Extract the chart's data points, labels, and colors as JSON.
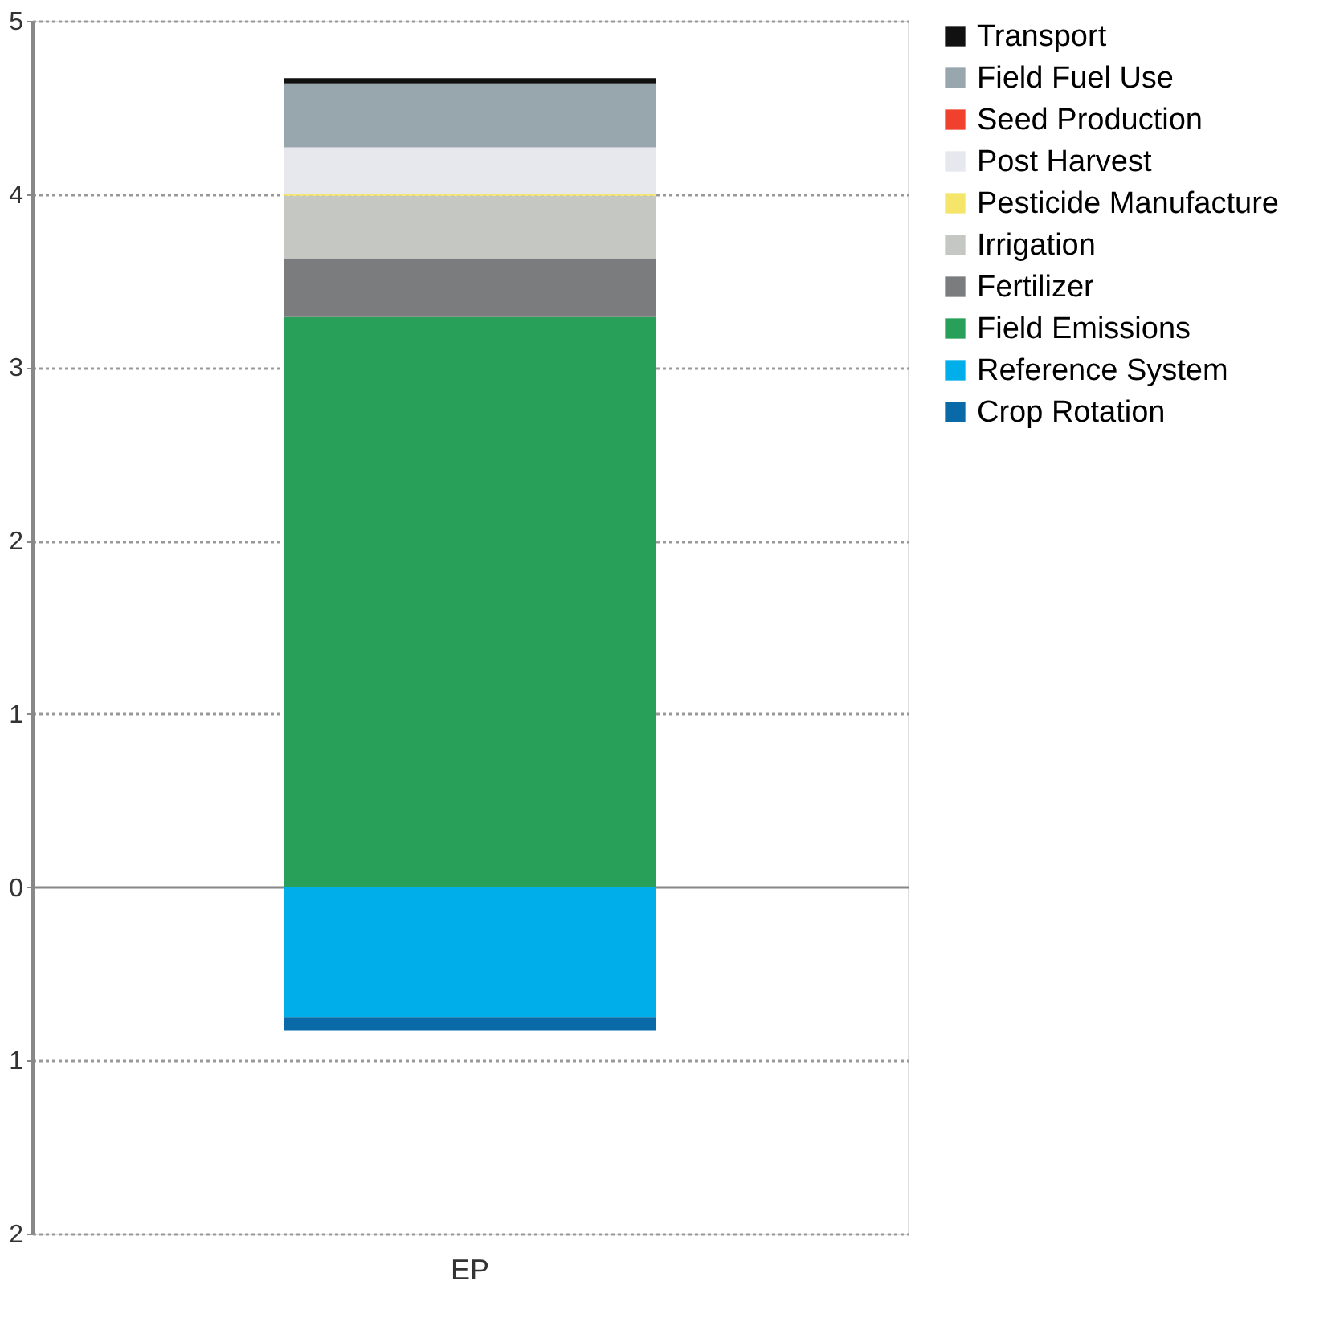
{
  "chart_data": {
    "type": "bar",
    "stacked": true,
    "categories": [
      "EP"
    ],
    "series": [
      {
        "name": "Field Emissions",
        "color": "#28a05a",
        "values": [
          3.29
        ]
      },
      {
        "name": "Fertilizer",
        "color": "#7a7c7e",
        "values": [
          0.34
        ]
      },
      {
        "name": "Irrigation",
        "color": "#c4c7c2",
        "values": [
          0.36
        ]
      },
      {
        "name": "Pesticide Manufacture",
        "color": "#f5e56b",
        "values": [
          0.01
        ]
      },
      {
        "name": "Post Harvest",
        "color": "#e6e8ee",
        "values": [
          0.27
        ]
      },
      {
        "name": "Seed Production",
        "color": "#f0412e",
        "values": [
          0
        ]
      },
      {
        "name": "Field Fuel Use",
        "color": "#98a6ae",
        "values": [
          0.37
        ]
      },
      {
        "name": "Transport",
        "color": "#111111",
        "values": [
          0.03
        ]
      },
      {
        "name": "Reference System",
        "color": "#00aeea",
        "values": [
          -0.75
        ]
      },
      {
        "name": "Crop Rotation",
        "color": "#0a6aa8",
        "values": [
          -0.08
        ]
      }
    ],
    "ylim": [
      -2,
      5
    ],
    "yticks": [
      {
        "value": -2,
        "label": "2"
      },
      {
        "value": -1,
        "label": "1"
      },
      0,
      1,
      2,
      3,
      4,
      5
    ],
    "grid": "y",
    "legend": "top right"
  }
}
